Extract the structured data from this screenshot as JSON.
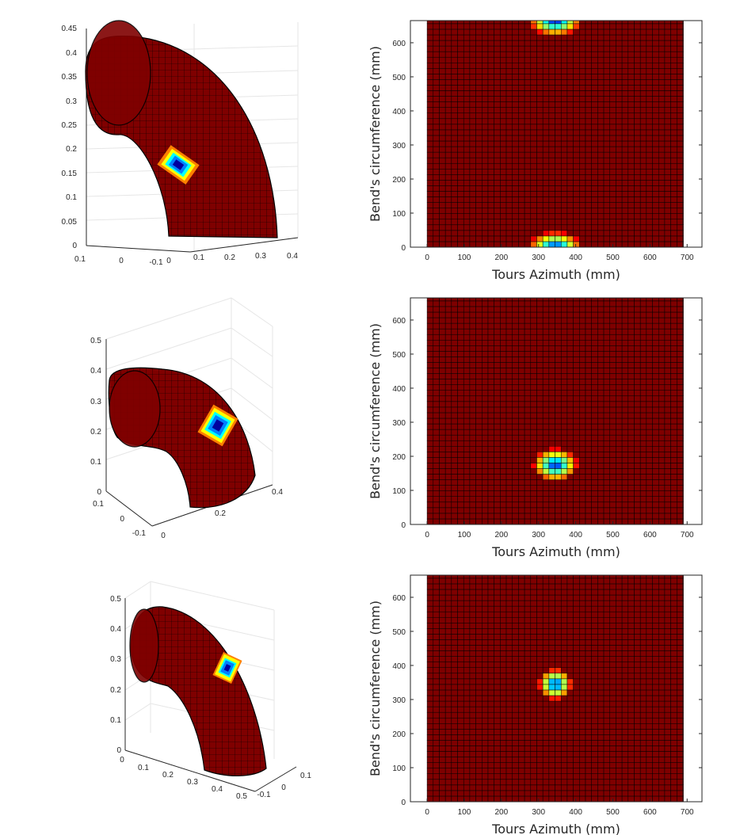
{
  "colors": {
    "background": "#ffffff",
    "surface": "#7f0000",
    "mesh": "#000000",
    "axis": "#262626",
    "grid": "#e6e6e6",
    "colormap": "jet"
  },
  "chart_data": [
    {
      "type": "surface3d",
      "panel": "top-left",
      "z_ticks": [
        "0",
        "0.05",
        "0.1",
        "0.15",
        "0.2",
        "0.25",
        "0.3",
        "0.35",
        "0.4",
        "0.45"
      ],
      "x_ticks": [
        "0.1",
        "0",
        "-0.1"
      ],
      "y_ticks": [
        "0",
        "0.1",
        "0.2",
        "0.3",
        "0.4"
      ],
      "zlim": [
        0,
        0.45
      ],
      "grid": true,
      "defect": {
        "circumference_mm": 0,
        "azimuth_mm": 345
      }
    },
    {
      "type": "heatmap",
      "panel": "top-right",
      "xlabel": "Tours Azimuth (mm)",
      "ylabel": "Bend's circumference (mm)",
      "x_ticks": [
        0,
        100,
        200,
        300,
        400,
        500,
        600,
        700
      ],
      "y_ticks": [
        0,
        100,
        200,
        300,
        400,
        500,
        600
      ],
      "xlim": [
        -45,
        740
      ],
      "ylim": [
        0,
        665
      ],
      "grid_x": [
        0,
        690
      ],
      "grid_y": [
        0,
        665
      ],
      "cell_mm": 16.4,
      "hotspots": [
        {
          "x": 345,
          "y": 0,
          "rx": 70,
          "ry": 45
        },
        {
          "x": 345,
          "y": 665,
          "rx": 70,
          "ry": 45
        }
      ]
    },
    {
      "type": "surface3d",
      "panel": "middle-left",
      "z_ticks": [
        "0",
        "0.1",
        "0.2",
        "0.3",
        "0.4",
        "0.5"
      ],
      "x_ticks": [
        "0.1",
        "0",
        "-0.1"
      ],
      "y_ticks": [
        "0",
        "0.2",
        "0.4"
      ],
      "zlim": [
        0,
        0.5
      ],
      "grid": true,
      "defect": {
        "circumference_mm": 175,
        "azimuth_mm": 345
      }
    },
    {
      "type": "heatmap",
      "panel": "middle-right",
      "xlabel": "Tours Azimuth (mm)",
      "ylabel": "Bend's circumference (mm)",
      "x_ticks": [
        0,
        100,
        200,
        300,
        400,
        500,
        600,
        700
      ],
      "y_ticks": [
        0,
        100,
        200,
        300,
        400,
        500,
        600
      ],
      "xlim": [
        -45,
        740
      ],
      "ylim": [
        0,
        665
      ],
      "grid_x": [
        0,
        690
      ],
      "grid_y": [
        0,
        665
      ],
      "cell_mm": 16.4,
      "hotspots": [
        {
          "x": 345,
          "y": 175,
          "rx": 60,
          "ry": 48
        }
      ]
    },
    {
      "type": "surface3d",
      "panel": "bottom-left",
      "z_ticks": [
        "0",
        "0.1",
        "0.2",
        "0.3",
        "0.4",
        "0.5"
      ],
      "x_ticks": [
        "0",
        "0.1",
        "0.2",
        "0.3",
        "0.4",
        "0.5"
      ],
      "y_ticks": [
        "0.1",
        "0",
        "-0.1"
      ],
      "zlim": [
        0,
        0.5
      ],
      "grid": true,
      "defect": {
        "circumference_mm": 345,
        "azimuth_mm": 345
      }
    },
    {
      "type": "heatmap",
      "panel": "bottom-right",
      "xlabel": "Tours Azimuth (mm)",
      "ylabel": "Bend's circumference (mm)",
      "x_ticks": [
        0,
        100,
        200,
        300,
        400,
        500,
        600,
        700
      ],
      "y_ticks": [
        0,
        100,
        200,
        300,
        400,
        500,
        600
      ],
      "xlim": [
        -45,
        740
      ],
      "ylim": [
        0,
        665
      ],
      "grid_x": [
        0,
        690
      ],
      "grid_y": [
        0,
        665
      ],
      "cell_mm": 16.4,
      "hotspots": [
        {
          "x": 345,
          "y": 345,
          "rx": 45,
          "ry": 45
        }
      ]
    }
  ]
}
